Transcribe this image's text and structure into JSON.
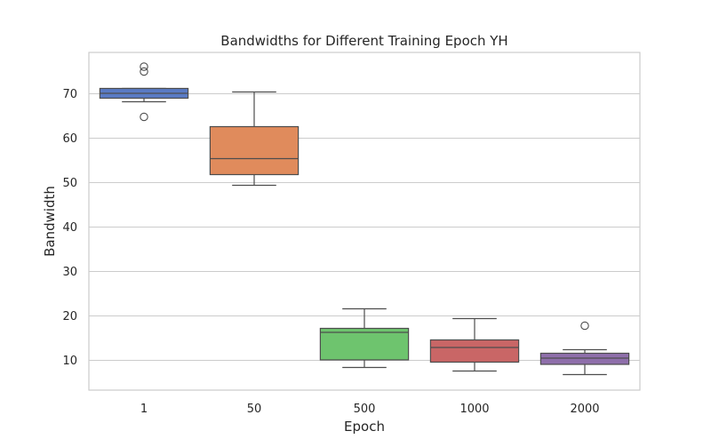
{
  "chart_data": {
    "type": "box",
    "title": "Bandwidths for Different Training Epoch YH",
    "xlabel": "Epoch",
    "ylabel": "Bandwidth",
    "ylim": [
      3.3,
      79.3
    ],
    "yticks": [
      10,
      20,
      30,
      40,
      50,
      60,
      70
    ],
    "grid": "y",
    "categories": [
      "1",
      "50",
      "500",
      "1000",
      "2000"
    ],
    "colors": [
      "#5a7bc5",
      "#e08b5c",
      "#6ec46e",
      "#c96666",
      "#8f6fab"
    ],
    "boxes": [
      {
        "category": "1",
        "whisker_low": 68.2,
        "q1": 69.0,
        "median": 70.1,
        "q3": 71.2,
        "whisker_high": 71.2,
        "outliers": [
          76.1,
          75.0,
          64.8
        ]
      },
      {
        "category": "50",
        "whisker_low": 49.4,
        "q1": 51.8,
        "median": 55.4,
        "q3": 62.6,
        "whisker_high": 70.4,
        "outliers": []
      },
      {
        "category": "500",
        "whisker_low": 8.4,
        "q1": 10.1,
        "median": 16.3,
        "q3": 17.2,
        "whisker_high": 21.6,
        "outliers": []
      },
      {
        "category": "1000",
        "whisker_low": 7.6,
        "q1": 9.6,
        "median": 12.9,
        "q3": 14.6,
        "whisker_high": 19.4,
        "outliers": []
      },
      {
        "category": "2000",
        "whisker_low": 6.8,
        "q1": 9.1,
        "median": 10.5,
        "q3": 11.6,
        "whisker_high": 12.4,
        "outliers": [
          17.8
        ]
      }
    ]
  }
}
